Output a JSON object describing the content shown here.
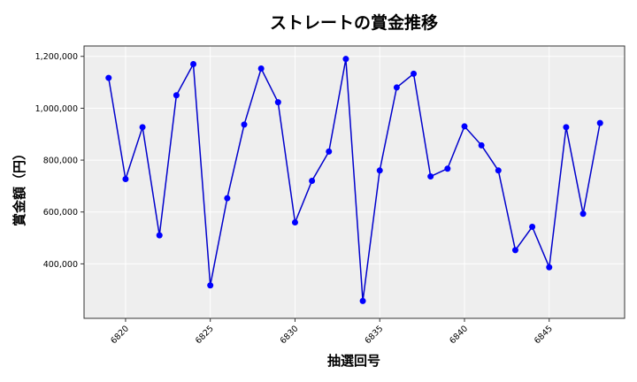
{
  "chart_data": {
    "type": "line",
    "title": "ストレートの賞金推移",
    "xlabel": "抽選回号",
    "ylabel": "賞金額（円）",
    "x": [
      6819,
      6820,
      6821,
      6822,
      6823,
      6824,
      6825,
      6826,
      6827,
      6828,
      6829,
      6830,
      6831,
      6832,
      6833,
      6834,
      6835,
      6836,
      6837,
      6838,
      6839,
      6840,
      6841,
      6842,
      6843,
      6844,
      6845,
      6846,
      6847,
      6848
    ],
    "series": [
      {
        "name": "ストレート",
        "color": "#0000cc",
        "marker_color": "#0000ff",
        "values": [
          1117000,
          727000,
          927000,
          510000,
          1050000,
          1170000,
          317000,
          653000,
          937000,
          1153000,
          1023000,
          560000,
          720000,
          833000,
          1190000,
          257000,
          760000,
          1080000,
          1133000,
          737000,
          767000,
          930000,
          857000,
          760000,
          453000,
          543000,
          387000,
          927000,
          593000,
          943000
        ]
      }
    ],
    "xticks": [
      6820,
      6825,
      6830,
      6835,
      6840,
      6845
    ],
    "xtick_labels": [
      "6820",
      "6825",
      "6830",
      "6835",
      "6840",
      "6845"
    ],
    "yticks": [
      400000,
      600000,
      800000,
      1000000,
      1200000
    ],
    "ytick_labels": [
      "400,000",
      "600,000",
      "800,000",
      "1,000,000",
      "1,200,000"
    ],
    "xlim": [
      6817.55,
      6849.45
    ],
    "ylim": [
      190000,
      1240000
    ],
    "grid": true,
    "background": "#eeeeee",
    "legend": null
  }
}
